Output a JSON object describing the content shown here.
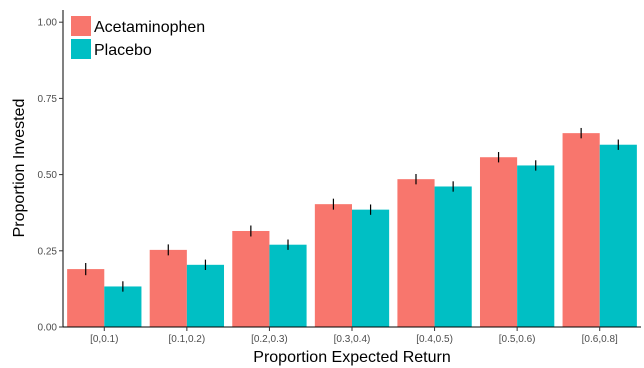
{
  "chart_data": {
    "type": "bar",
    "xlabel": "Proportion Expected Return",
    "ylabel": "Proportion Invested",
    "ylim": [
      0,
      1.04
    ],
    "yticks": [
      0.0,
      0.25,
      0.5,
      0.75,
      1.0
    ],
    "ytick_labels": [
      "0.00",
      "0.25",
      "0.50",
      "0.75",
      "1.00"
    ],
    "categories": [
      "[0,0.1)",
      "[0.1,0.2)",
      "[0.2,0.3)",
      "[0.3,0.4)",
      "[0.4,0.5)",
      "[0.5,0.6)",
      "[0.6,0.8]"
    ],
    "series": [
      {
        "name": "Acetaminophen",
        "color": "#F8766D",
        "values": [
          0.19,
          0.253,
          0.315,
          0.403,
          0.485,
          0.557,
          0.636
        ],
        "error": [
          0.02,
          0.018,
          0.018,
          0.018,
          0.017,
          0.017,
          0.017
        ]
      },
      {
        "name": "Placebo",
        "color": "#00BFC4",
        "values": [
          0.133,
          0.204,
          0.27,
          0.385,
          0.461,
          0.53,
          0.598
        ],
        "error": [
          0.017,
          0.017,
          0.017,
          0.017,
          0.017,
          0.017,
          0.017
        ]
      }
    ],
    "legend_position": "top-left",
    "grid": false
  }
}
